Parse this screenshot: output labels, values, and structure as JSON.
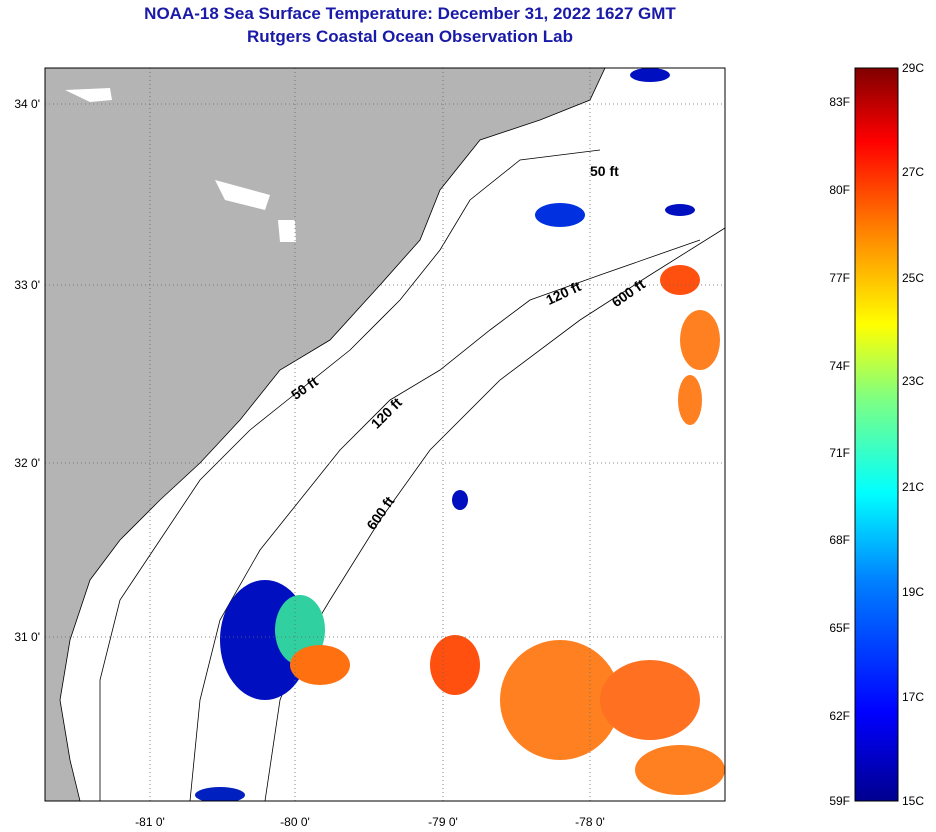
{
  "header": {
    "title": "NOAA-18 Sea Surface Temperature:  December 31, 2022 1627 GMT",
    "subtitle": "Rutgers Coastal Ocean Observation Lab"
  },
  "map": {
    "lat_labels": [
      "34 0'",
      "33 0'",
      "32 0'",
      "31 0'"
    ],
    "lon_labels": [
      "-81 0'",
      "-80 0'",
      "-79 0'",
      "-78 0'"
    ],
    "contour_labels": [
      "50 ft",
      "50 ft",
      "120 ft",
      "120 ft",
      "600 ft",
      "600 ft"
    ],
    "land_color": "#b4b4b4"
  },
  "colorbar": {
    "f_labels": [
      "83F",
      "80F",
      "77F",
      "74F",
      "71F",
      "68F",
      "65F",
      "62F",
      "59F"
    ],
    "c_labels": [
      "29C",
      "27C",
      "25C",
      "23C",
      "21C",
      "19C",
      "17C",
      "15C"
    ],
    "range_c": [
      15,
      29
    ],
    "colors": [
      "#00008f",
      "#0000ff",
      "#0080ff",
      "#00ffff",
      "#80ff80",
      "#ffff00",
      "#ff8000",
      "#ff0000",
      "#800000"
    ]
  }
}
